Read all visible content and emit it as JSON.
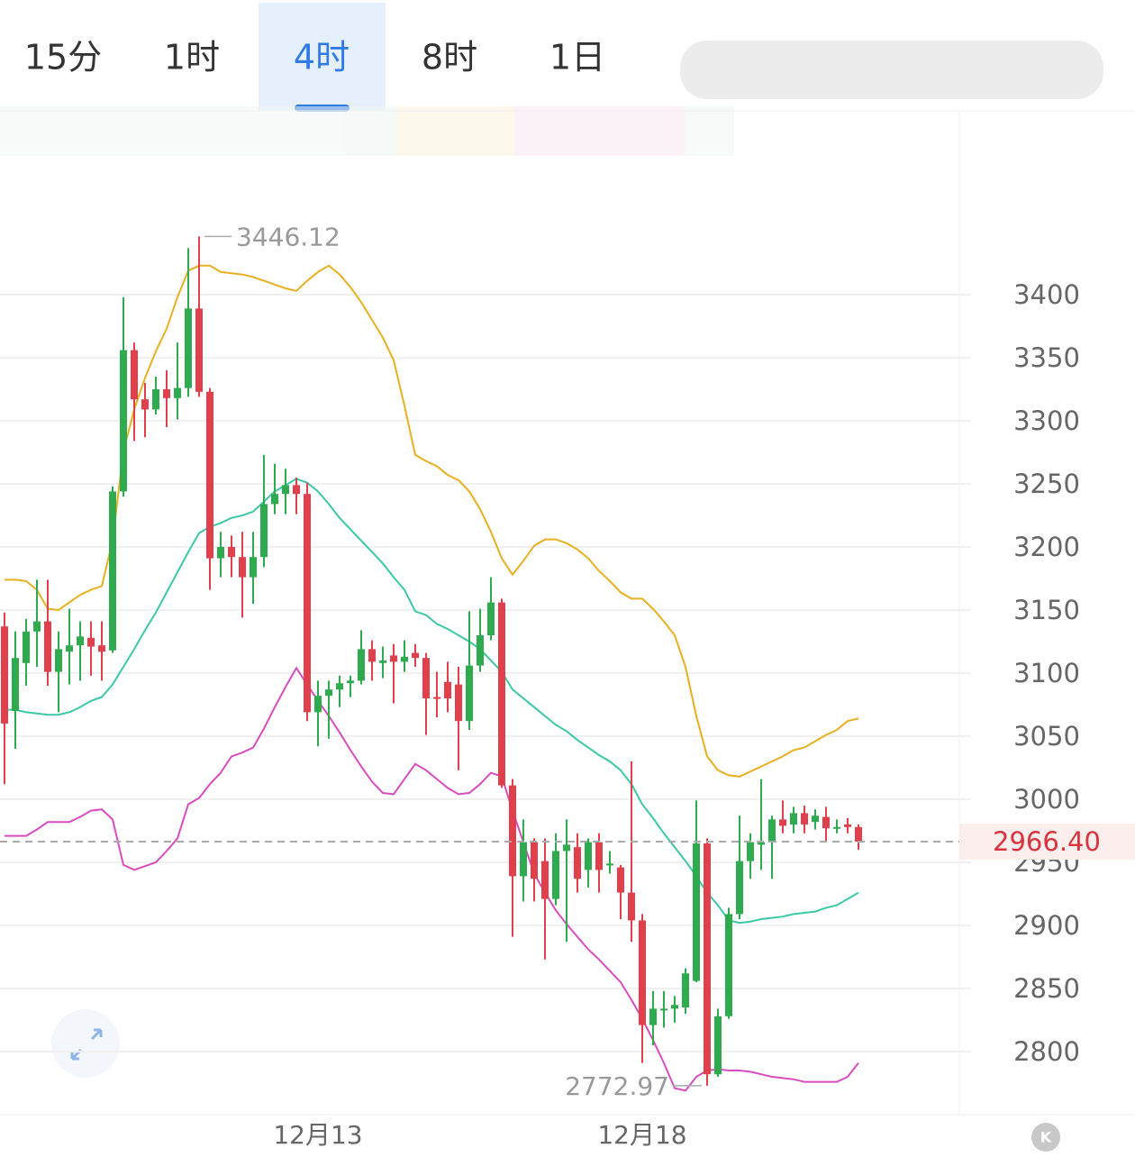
{
  "tabs": [
    "15分",
    "1时",
    "4时",
    "8时",
    "1日"
  ],
  "active_tab": 2,
  "chart_data": {
    "type": "candlestick",
    "categories": [
      null,
      null,
      null,
      null,
      null,
      null,
      null,
      null,
      null,
      null,
      null,
      null,
      null,
      null,
      null,
      null,
      null,
      null,
      null,
      null,
      null,
      null,
      null,
      null,
      null,
      null,
      null,
      null,
      null,
      "12月13",
      null,
      null,
      null,
      null,
      null,
      null,
      null,
      null,
      null,
      null,
      null,
      null,
      null,
      null,
      null,
      null,
      null,
      null,
      null,
      null,
      null,
      null,
      null,
      null,
      null,
      null,
      null,
      null,
      null,
      "12月18",
      null,
      null,
      null,
      null,
      null,
      null,
      null,
      null,
      null,
      null,
      null,
      null,
      null,
      null,
      null,
      null,
      null,
      null,
      null,
      null
    ],
    "open": [
      3137,
      3070,
      3108,
      3133,
      3141,
      3101,
      3117,
      3122,
      3128,
      3122,
      3118,
      3244,
      3356,
      3317,
      3309,
      3325,
      3318,
      3326,
      3389,
      3323,
      3191,
      3200,
      3192,
      3176,
      3192,
      3234,
      3242,
      3249,
      3242,
      3069,
      3082,
      3087,
      3092,
      3094,
      3119,
      3108,
      3114,
      3109,
      3116,
      3112,
      3081,
      3093,
      3091,
      3062,
      3106,
      3130,
      3156,
      3011,
      2939,
      2966,
      2951,
      2921,
      2959,
      2962,
      2944,
      2966,
      2948,
      2946,
      2926,
      2904,
      2821,
      2833,
      2834,
      2835,
      2856,
      2965,
      2782,
      2828,
      2909,
      2951,
      2964,
      2966,
      2984,
      2980,
      2989,
      2982,
      2986,
      2977,
      2980,
      2978
    ],
    "high": [
      3148,
      3133,
      3143,
      3174,
      3174,
      3133,
      3151,
      3141,
      3141,
      3141,
      3248,
      3398,
      3362,
      3330,
      3335,
      3340,
      3362,
      3437,
      3446.12,
      3326,
      3212,
      3209,
      3212,
      3212,
      3273,
      3266,
      3262,
      3255,
      3251,
      3094,
      3094,
      3098,
      3098,
      3134,
      3126,
      3121,
      3123,
      3126,
      3123,
      3116,
      3101,
      3109,
      3105,
      3149,
      3151,
      3176,
      3159,
      3016,
      2984,
      2969,
      2969,
      2973,
      2984,
      2973,
      2969,
      2973,
      2959,
      2948,
      3030,
      2909,
      2848,
      2848,
      2844,
      2866,
      2999,
      2969,
      2834,
      2914,
      2987,
      2973,
      3016,
      2987,
      2999,
      2994,
      2995,
      2992,
      2994,
      2984,
      2985,
      2980
    ],
    "low": [
      3012,
      3040,
      3090,
      3105,
      3090,
      3069,
      3091,
      3094,
      3098,
      3094,
      3116,
      3240,
      3284,
      3287,
      3305,
      3295,
      3301,
      3319,
      3319,
      3166,
      3176,
      3176,
      3144,
      3155,
      3184,
      3226,
      3226,
      3226,
      3062,
      3042,
      3048,
      3073,
      3081,
      3091,
      3094,
      3096,
      3076,
      3101,
      3105,
      3051,
      3065,
      3069,
      3023,
      3055,
      3101,
      3126,
      3009,
      2891,
      2919,
      2919,
      2873,
      2916,
      2887,
      2926,
      2930,
      2926,
      2941,
      2905,
      2887,
      2791,
      2805,
      2819,
      2823,
      2830,
      2855,
      2772.97,
      2780,
      2826,
      2905,
      2937,
      2944,
      2937,
      2973,
      2973,
      2973,
      2976,
      2966,
      2973,
      2973,
      2960
    ],
    "close": [
      3060,
      3112,
      3133,
      3141,
      3101,
      3119,
      3122,
      3129,
      3121,
      3117,
      3244,
      3356,
      3317,
      3309,
      3325,
      3318,
      3326,
      3389,
      3323,
      3191,
      3200,
      3192,
      3176,
      3192,
      3234,
      3242,
      3249,
      3242,
      3069,
      3082,
      3087,
      3092,
      3094,
      3119,
      3109,
      3110,
      3109,
      3113,
      3112,
      3080,
      3080,
      3080,
      3062,
      3106,
      3130,
      3156,
      3011,
      2939,
      2966,
      2937,
      2921,
      2959,
      2964,
      2937,
      2966,
      2944,
      2949,
      2926,
      2904,
      2821,
      2834,
      2834,
      2837,
      2862,
      2965,
      2782,
      2828,
      2909,
      2951,
      2966,
      2966,
      2984,
      2979,
      2989,
      2980,
      2987,
      2977,
      2978,
      2978,
      2966.4
    ],
    "up_color": "#2eab4e",
    "down_color": "#e0404c",
    "series": [
      {
        "color": "#e8b020",
        "values": [
          3174,
          3174,
          3173,
          3166,
          3151,
          3150,
          3156,
          3162,
          3166,
          3169,
          3205,
          3276,
          3309,
          3334,
          3355,
          3373,
          3398,
          3419,
          3423,
          3423,
          3418,
          3417,
          3416,
          3414,
          3411,
          3408,
          3405,
          3403,
          3411,
          3418,
          3423,
          3416,
          3406,
          3394,
          3380,
          3366,
          3348,
          3312,
          3273,
          3268,
          3264,
          3257,
          3253,
          3244,
          3230,
          3212,
          3191,
          3178,
          3189,
          3201,
          3206,
          3206,
          3203,
          3198,
          3191,
          3181,
          3173,
          3164,
          3159,
          3159,
          3151,
          3141,
          3130,
          3105,
          3066,
          3034,
          3023,
          3019,
          3018,
          3022,
          3026,
          3030,
          3034,
          3039,
          3041,
          3046,
          3051,
          3055,
          3062,
          3064
        ]
      },
      {
        "color": "#3cc8a8",
        "values": [
          3071,
          3071,
          3069,
          3068,
          3067,
          3067,
          3069,
          3073,
          3078,
          3081,
          3091,
          3105,
          3119,
          3134,
          3148,
          3164,
          3180,
          3196,
          3211,
          3216,
          3219,
          3223,
          3225,
          3228,
          3236,
          3244,
          3249,
          3254,
          3251,
          3244,
          3234,
          3223,
          3214,
          3205,
          3196,
          3187,
          3176,
          3166,
          3149,
          3146,
          3139,
          3135,
          3130,
          3125,
          3119,
          3110,
          3101,
          3087,
          3080,
          3073,
          3066,
          3059,
          3054,
          3047,
          3041,
          3035,
          3030,
          3023,
          3012,
          2996,
          2985,
          2973,
          2962,
          2951,
          2939,
          2926,
          2916,
          2904,
          2902,
          2903,
          2905,
          2906,
          2907,
          2909,
          2910,
          2911,
          2914,
          2916,
          2921,
          2926
        ]
      },
      {
        "color": "#d84cc0",
        "values": [
          2971,
          2971,
          2971,
          2976,
          2982,
          2982,
          2982,
          2986,
          2991,
          2992,
          2984,
          2948,
          2944,
          2947,
          2950,
          2959,
          2969,
          2996,
          3001,
          3012,
          3021,
          3034,
          3037,
          3041,
          3056,
          3073,
          3089,
          3104,
          3091,
          3078,
          3066,
          3053,
          3039,
          3026,
          3014,
          3005,
          3004,
          3016,
          3028,
          3023,
          3016,
          3009,
          3004,
          3005,
          3012,
          3021,
          3018,
          2991,
          2966,
          2941,
          2926,
          2912,
          2901,
          2891,
          2881,
          2873,
          2864,
          2855,
          2841,
          2826,
          2809,
          2791,
          2771,
          2769,
          2780,
          2785,
          2786,
          2785,
          2785,
          2784,
          2782,
          2780,
          2779,
          2778,
          2776,
          2776,
          2776,
          2776,
          2780,
          2791
        ]
      }
    ],
    "ylim": [
      2750,
      3505
    ],
    "yticks": [
      2800,
      2850,
      2900,
      2950,
      3000,
      3050,
      3100,
      3150,
      3200,
      3250,
      3300,
      3350,
      3400
    ],
    "grid": true,
    "max_annotation": {
      "value": 3446.12,
      "label": "3446.12"
    },
    "min_annotation": {
      "value": 2772.97,
      "label": "2772.97"
    },
    "last_price": {
      "value": 2966.4,
      "label": "2966.40"
    }
  }
}
